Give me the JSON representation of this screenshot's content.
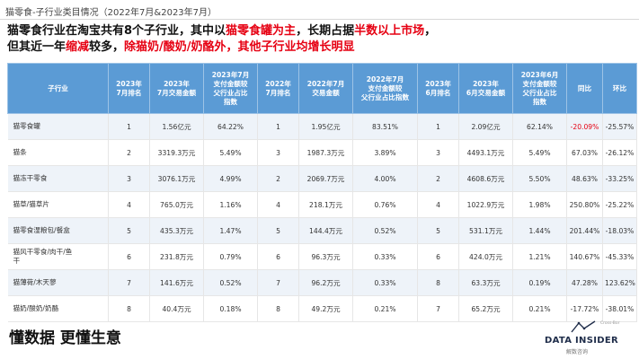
{
  "page": {
    "title": "猫零食-子行业类目情况（2022年7月&2023年7月）"
  },
  "headline": {
    "line1": [
      {
        "text": "猫零食行业在淘宝共有8个子行业，其中以",
        "red": false
      },
      {
        "text": "猫零食罐为主",
        "red": true
      },
      {
        "text": "，长期占据",
        "red": false
      },
      {
        "text": "半数以上市场",
        "red": true
      },
      {
        "text": "，",
        "red": false
      }
    ],
    "line2": [
      {
        "text": "但其近一年",
        "red": false
      },
      {
        "text": "缩减",
        "red": true
      },
      {
        "text": "较多，",
        "red": false
      },
      {
        "text": "除猫奶/酸奶/奶酪外，其他子行业均增长明显",
        "red": true
      }
    ]
  },
  "table": {
    "headers": [
      "子行业",
      "2023年\n7月排名",
      "2023年\n7月交易金额",
      "2023年7月\n支付金额较\n父行业占比\n指数",
      "2022年\n7月排名",
      "2022年7月\n交易金额",
      "2022年7月\n支付金额较\n父行业占比指数",
      "2023年\n6月排名",
      "2023年\n6月交易金额",
      "2023年6月\n支付金额较\n父行业占比\n指数",
      "同比",
      "环比"
    ],
    "rows": [
      {
        "name": "猫零食罐",
        "c": [
          "1",
          "1.56亿元",
          "64.22%",
          "1",
          "1.95亿元",
          "83.51%",
          "1",
          "2.09亿元",
          "62.14%",
          "-20.09%",
          "-25.57%"
        ],
        "neg_yoy": true
      },
      {
        "name": "猫条",
        "c": [
          "2",
          "3319.3万元",
          "5.49%",
          "3",
          "1987.3万元",
          "3.89%",
          "3",
          "4493.1万元",
          "5.49%",
          "67.03%",
          "-26.12%"
        ],
        "neg_yoy": false
      },
      {
        "name": "猫冻干零食",
        "c": [
          "3",
          "3076.1万元",
          "4.99%",
          "2",
          "2069.7万元",
          "4.00%",
          "2",
          "4608.6万元",
          "5.50%",
          "48.63%",
          "-33.25%"
        ],
        "neg_yoy": false
      },
      {
        "name": "猫草/猫草片",
        "c": [
          "4",
          "765.0万元",
          "1.16%",
          "4",
          "218.1万元",
          "0.76%",
          "4",
          "1022.9万元",
          "1.98%",
          "250.80%",
          "-25.22%"
        ],
        "neg_yoy": false
      },
      {
        "name": "猫零食湿粮包/餐盒",
        "c": [
          "5",
          "435.3万元",
          "1.47%",
          "5",
          "144.4万元",
          "0.52%",
          "5",
          "531.1万元",
          "1.44%",
          "201.44%",
          "-18.03%"
        ],
        "neg_yoy": false
      },
      {
        "name": "猫风干零食/肉干/鱼\n干",
        "c": [
          "6",
          "231.8万元",
          "0.79%",
          "6",
          "96.3万元",
          "0.33%",
          "6",
          "424.0万元",
          "1.21%",
          "140.67%",
          "-45.33%"
        ],
        "neg_yoy": false
      },
      {
        "name": "猫薄荷/木天蓼",
        "c": [
          "7",
          "141.6万元",
          "0.52%",
          "7",
          "96.2万元",
          "0.33%",
          "8",
          "63.3万元",
          "0.19%",
          "47.28%",
          "123.62%"
        ],
        "neg_yoy": false
      },
      {
        "name": "猫奶/酸奶/奶酪",
        "c": [
          "8",
          "40.4万元",
          "0.18%",
          "8",
          "49.2万元",
          "0.21%",
          "7",
          "65.2万元",
          "0.21%",
          "-17.72%",
          "-38.01%"
        ],
        "neg_yoy": false
      }
    ]
  },
  "footer": {
    "slogan": "懂数据 更懂生意",
    "logo_text": "DATA INSIDER",
    "logo_sub": "解数咨询",
    "logo_small": "Cross-Bor"
  },
  "colors": {
    "header_bg": "#5b9bd5",
    "accent_red": "#e60012",
    "stripe": "#eef3f9"
  }
}
